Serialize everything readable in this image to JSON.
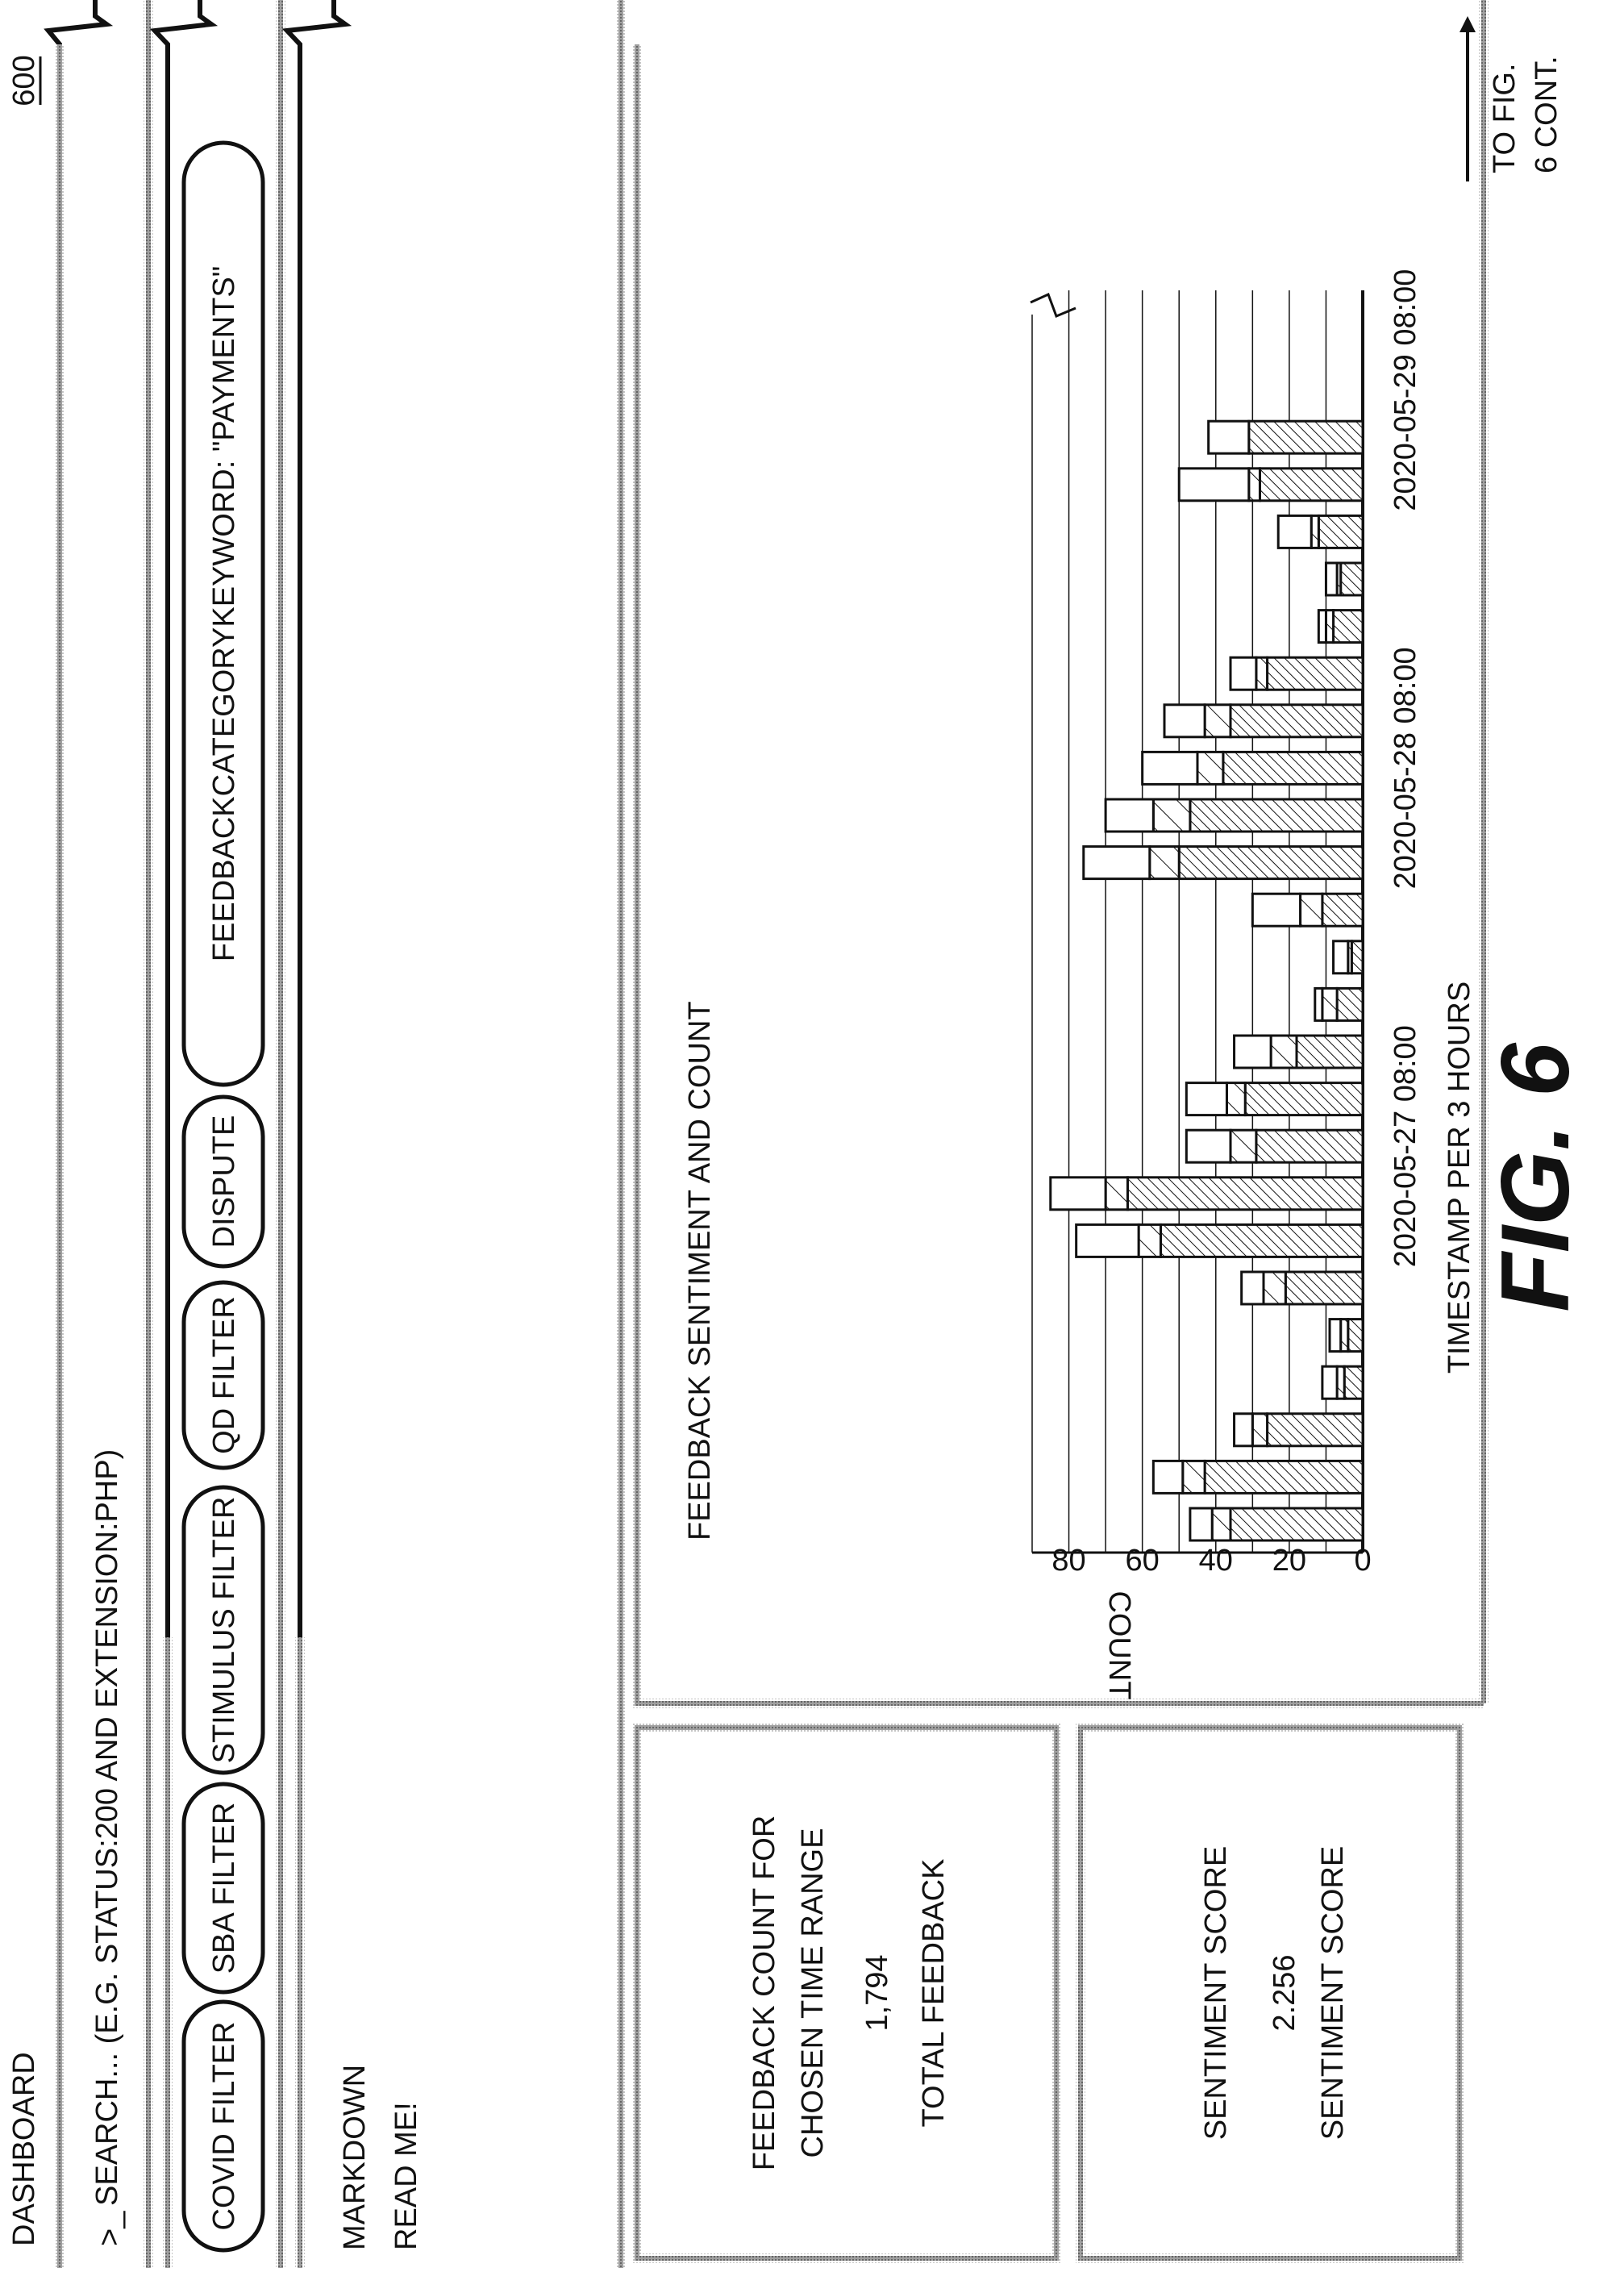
{
  "figure_ref": "600",
  "dashboard_title": "DASHBOARD",
  "search": {
    "prompt": ">_",
    "text": "SEARCH... (E.G. STATUS:200 AND EXTENSION:PHP)"
  },
  "filters": [
    {
      "label": "COVID FILTER"
    },
    {
      "label": "SBA FILTER"
    },
    {
      "label": "STIMULUS FILTER"
    },
    {
      "label": "QD FILTER"
    },
    {
      "label": "DISPUTE"
    },
    {
      "label": "FEEDBACKCATEGORYKEYWORD: \"PAYMENTS\""
    }
  ],
  "markdown_panel": {
    "title": "MARKDOWN",
    "body": "READ ME!"
  },
  "feedback_count_panel": {
    "title_line1": "FEEDBACK COUNT FOR",
    "title_line2": "CHOSEN TIME RANGE",
    "value": "1,794",
    "caption": "TOTAL FEEDBACK"
  },
  "sentiment_panel": {
    "title": "SENTIMENT SCORE",
    "value": "2.256",
    "caption": "SENTIMENT SCORE"
  },
  "continuation_note": {
    "line1": "TO FIG.",
    "line2": "6 CONT."
  },
  "figure_label": "FIG. 6",
  "chart_data": {
    "type": "bar",
    "stacked": true,
    "title": "FEEDBACK SENTIMENT AND COUNT",
    "ylabel": "COUNT",
    "xlabel": "TIMESTAMP PER 3 HOURS",
    "ylim": [
      0,
      90
    ],
    "y_ticks": [
      0,
      20,
      40,
      60,
      80
    ],
    "x_tick_labels": [
      {
        "bar_index": 8,
        "label": "2020-05-27 08:00"
      },
      {
        "bar_index": 16,
        "label": "2020-05-28 08:00"
      },
      {
        "bar_index": 24,
        "label": "2020-05-29 08:00"
      }
    ],
    "grid": true,
    "series": [
      {
        "values": [
          36,
          43,
          26,
          5,
          4,
          21,
          55,
          64,
          29,
          32,
          18,
          7,
          3,
          11,
          50,
          47,
          38,
          36,
          26,
          8,
          6,
          12,
          28,
          31
        ]
      },
      {
        "values": [
          5,
          6,
          4,
          2,
          2,
          6,
          6,
          6,
          7,
          5,
          7,
          4,
          1,
          6,
          8,
          10,
          7,
          7,
          3,
          2,
          1,
          2,
          3,
          0
        ]
      },
      {
        "values": [
          6,
          8,
          5,
          4,
          3,
          6,
          17,
          15,
          12,
          11,
          10,
          2,
          4,
          13,
          18,
          13,
          15,
          11,
          7,
          2,
          3,
          9,
          19,
          11
        ]
      }
    ]
  }
}
